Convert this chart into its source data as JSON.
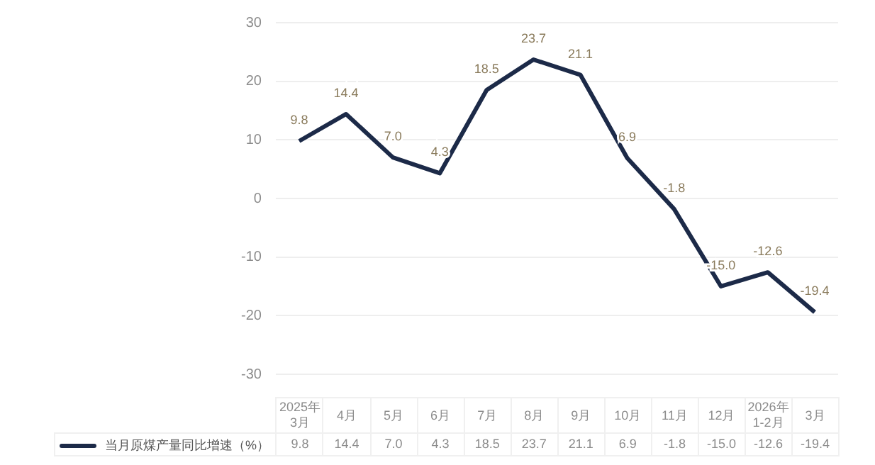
{
  "chart_data": {
    "type": "line",
    "categories": [
      "2025年3月",
      "4月",
      "5月",
      "6月",
      "7月",
      "8月",
      "9月",
      "10月",
      "11月",
      "12月",
      "2026年1-2月",
      "3月"
    ],
    "series": [
      {
        "name": "当月原煤产量同比增速（%）",
        "color": "#1c2a48",
        "values": [
          9.8,
          14.4,
          7.0,
          4.3,
          18.5,
          23.7,
          21.1,
          6.9,
          -1.8,
          -15.0,
          -12.6,
          -19.4
        ],
        "value_labels": [
          "9.8",
          "14.4",
          "7.0",
          "4.3",
          "18.5",
          "23.7",
          "21.1",
          "6.9",
          "-1.8",
          "-15.0",
          "-12.6",
          "-19.4"
        ]
      }
    ],
    "ylim": [
      -30,
      30
    ],
    "yticks": [
      -30,
      -20,
      -10,
      0,
      10,
      20,
      30
    ],
    "grid": "y",
    "legend": "bottom",
    "marker": "none",
    "line_style": "solid"
  }
}
